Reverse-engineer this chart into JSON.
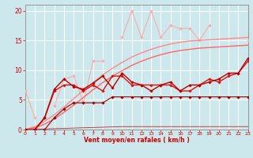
{
  "xlabel": "Vent moyen/en rafales ( km/h )",
  "x": [
    0,
    1,
    2,
    3,
    4,
    5,
    6,
    7,
    8,
    9,
    10,
    11,
    12,
    13,
    14,
    15,
    16,
    17,
    18,
    19,
    20,
    21,
    22,
    23
  ],
  "series": [
    {
      "color": "#ffaaaa",
      "lw": 0.8,
      "marker": "D",
      "ms": 1.8,
      "y": [
        6.5,
        2.0,
        null,
        4.0,
        8.5,
        9.0,
        4.5,
        11.5,
        11.5,
        null,
        15.5,
        20.0,
        15.5,
        20.0,
        15.5,
        17.5,
        17.0,
        17.0,
        15.0,
        17.5,
        null,
        null,
        null,
        15.0
      ]
    },
    {
      "color": "#ff8888",
      "lw": 1.0,
      "marker": null,
      "ms": 0,
      "y": [
        0,
        0.5,
        1.4,
        2.5,
        3.8,
        5.2,
        6.6,
        7.9,
        9.2,
        10.3,
        11.3,
        12.2,
        12.9,
        13.5,
        14.0,
        14.4,
        14.7,
        14.9,
        15.0,
        15.1,
        15.2,
        15.3,
        15.4,
        15.5
      ]
    },
    {
      "color": "#ff6666",
      "lw": 1.0,
      "marker": null,
      "ms": 0,
      "y": [
        0,
        0.3,
        0.9,
        1.8,
        2.9,
        4.1,
        5.4,
        6.7,
        7.9,
        9.0,
        9.9,
        10.8,
        11.5,
        12.1,
        12.6,
        13.0,
        13.3,
        13.5,
        13.7,
        13.8,
        13.9,
        14.0,
        14.1,
        14.2
      ]
    },
    {
      "color": "#dd1111",
      "lw": 1.0,
      "marker": "D",
      "ms": 1.8,
      "y": [
        0,
        0,
        2.0,
        6.5,
        7.5,
        7.5,
        6.5,
        7.5,
        6.5,
        9.0,
        9.0,
        7.5,
        7.5,
        7.5,
        7.5,
        7.5,
        6.5,
        6.5,
        7.5,
        8.5,
        8.0,
        9.0,
        9.5,
        11.5
      ]
    },
    {
      "color": "#bb0000",
      "lw": 1.0,
      "marker": "D",
      "ms": 1.8,
      "y": [
        0,
        0,
        2.0,
        6.8,
        8.5,
        7.2,
        6.8,
        7.8,
        9.0,
        7.0,
        9.5,
        8.0,
        7.5,
        6.5,
        7.5,
        8.0,
        6.5,
        7.5,
        7.5,
        8.0,
        8.5,
        9.5,
        9.5,
        12.0
      ]
    },
    {
      "color": "#990000",
      "lw": 0.8,
      "marker": "D",
      "ms": 1.8,
      "y": [
        0,
        0,
        0,
        2.0,
        3.5,
        4.5,
        4.5,
        4.5,
        4.5,
        5.5,
        5.5,
        5.5,
        5.5,
        5.5,
        5.5,
        5.5,
        5.5,
        5.5,
        5.5,
        5.5,
        5.5,
        5.5,
        5.5,
        5.5
      ]
    },
    {
      "color": "#cc2222",
      "lw": 0.6,
      "marker": null,
      "ms": 0,
      "y": [
        0,
        0.05,
        0.1,
        0.15,
        0.2,
        0.25,
        0.3,
        0.35,
        0.4,
        0.45,
        0.5,
        0.5,
        0.5,
        0.5,
        0.5,
        0.5,
        0.5,
        0.5,
        0.5,
        0.5,
        0.5,
        0.5,
        0.5,
        0.5
      ]
    }
  ],
  "ylim": [
    0,
    21
  ],
  "xlim": [
    0,
    23
  ],
  "yticks": [
    0,
    5,
    10,
    15,
    20
  ],
  "xticks": [
    0,
    1,
    2,
    3,
    4,
    5,
    6,
    7,
    8,
    9,
    10,
    11,
    12,
    13,
    14,
    15,
    16,
    17,
    18,
    19,
    20,
    21,
    22,
    23
  ],
  "bg_color": "#cce8ec",
  "grid_color": "#ffffff",
  "tick_color": "#cc0000",
  "label_color": "#cc0000"
}
